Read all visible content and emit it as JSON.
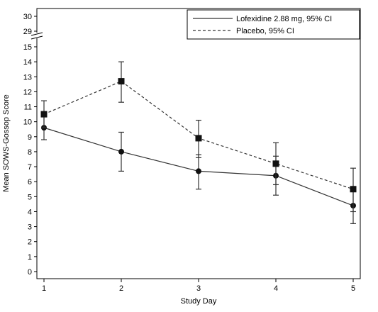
{
  "chart_data": {
    "type": "line",
    "xlabel": "Study Day",
    "ylabel": "Mean SOWS-Gossop Score",
    "x": [
      1,
      2,
      3,
      4,
      5
    ],
    "xticks": [
      "1",
      "2",
      "3",
      "4",
      "5"
    ],
    "yticks_lower": [
      "0",
      "1",
      "2",
      "3",
      "4",
      "5",
      "6",
      "7",
      "8",
      "9",
      "10",
      "11",
      "12",
      "13",
      "14",
      "15"
    ],
    "yticks_upper": [
      "29",
      "30"
    ],
    "ylim_lower": [
      0,
      15
    ],
    "ylim_upper": [
      29,
      30
    ],
    "axis_break": true,
    "grid": false,
    "legend_position": "top-right",
    "series": [
      {
        "name": "Lofexidine 2.88 mg, 95% CI",
        "line_style": "solid",
        "marker": "circle",
        "color": "#333333",
        "values": [
          9.6,
          8.0,
          6.7,
          6.4,
          4.4
        ],
        "ci_low": [
          8.8,
          6.7,
          5.5,
          5.1,
          3.2
        ],
        "ci_high": [
          10.5,
          9.3,
          7.8,
          7.7,
          5.6
        ]
      },
      {
        "name": "Placebo, 95% CI",
        "line_style": "dashed",
        "marker": "square",
        "color": "#333333",
        "values": [
          10.5,
          12.7,
          8.9,
          7.2,
          5.5
        ],
        "ci_low": [
          9.6,
          11.3,
          7.6,
          5.8,
          4.0
        ],
        "ci_high": [
          11.4,
          14.0,
          10.1,
          8.6,
          6.9
        ]
      }
    ]
  }
}
